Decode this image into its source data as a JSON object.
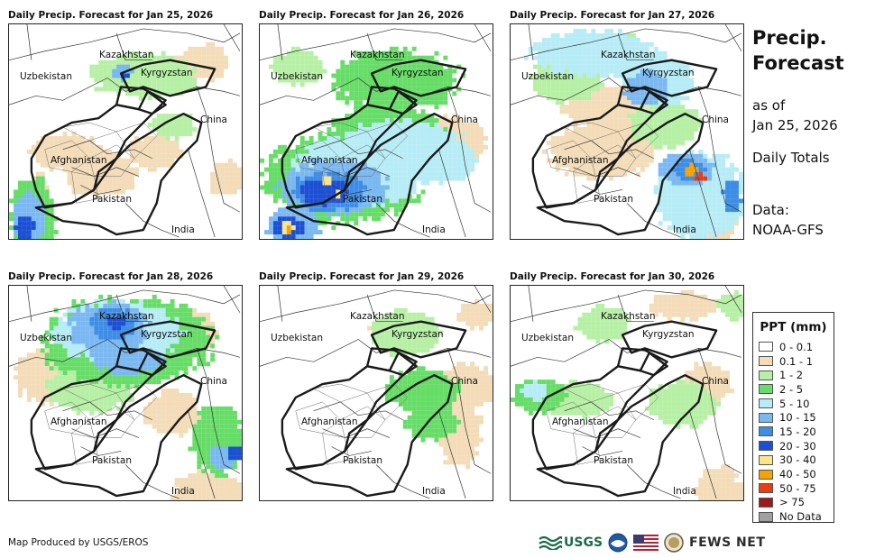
{
  "panels": [
    {
      "title": "Daily Precip. Forecast for Jan 25, 2026",
      "scenario": 0
    },
    {
      "title": "Daily Precip. Forecast for Jan 26, 2026",
      "scenario": 1
    },
    {
      "title": "Daily Precip. Forecast for Jan 27, 2026",
      "scenario": 2
    },
    {
      "title": "Daily Precip. Forecast for Jan 28, 2026",
      "scenario": 3
    },
    {
      "title": "Daily Precip. Forecast for Jan 29, 2026",
      "scenario": 4
    },
    {
      "title": "Daily Precip. Forecast for Jan 30, 2026",
      "scenario": 5
    }
  ],
  "map_labels": {
    "kazakhstan": "Kazakhstan",
    "uzbekistan": "Uzbekistan",
    "kyrgyzstan": "Kyrgyzstan",
    "china": "China",
    "afghanistan": "Afghanistan",
    "pakistan": "Pakistan",
    "india": "India"
  },
  "side": {
    "title_line1": "Precip.",
    "title_line2": "Forecast",
    "asof_line1": "as of",
    "asof_line2": "Jan 25, 2026",
    "totals": "Daily Totals",
    "data_line1": "Data:",
    "data_line2": "NOAA-GFS"
  },
  "legend": {
    "title": "PPT (mm)",
    "items": [
      {
        "label": "0 - 0.1",
        "color": "#ffffff"
      },
      {
        "label": "0.1 - 1",
        "color": "#f3dcb7"
      },
      {
        "label": "1 - 2",
        "color": "#b6f0a4"
      },
      {
        "label": "2 - 5",
        "color": "#66dd66"
      },
      {
        "label": "5 - 10",
        "color": "#b6ecf6"
      },
      {
        "label": "10 - 15",
        "color": "#7ab8f2"
      },
      {
        "label": "15 - 20",
        "color": "#3d8de6"
      },
      {
        "label": "20 - 30",
        "color": "#1c4fd4"
      },
      {
        "label": "30 - 40",
        "color": "#fbe58a"
      },
      {
        "label": "40 - 50",
        "color": "#f5a300"
      },
      {
        "label": "50 - 75",
        "color": "#ea3b12"
      },
      {
        "label": "> 75",
        "color": "#9c1a1a"
      },
      {
        "label": "No Data",
        "color": "#a0a0a0"
      }
    ]
  },
  "credit": "Map Produced by USGS/EROS",
  "logos": {
    "usgs": "USGS",
    "fews": "FEWS NET"
  }
}
